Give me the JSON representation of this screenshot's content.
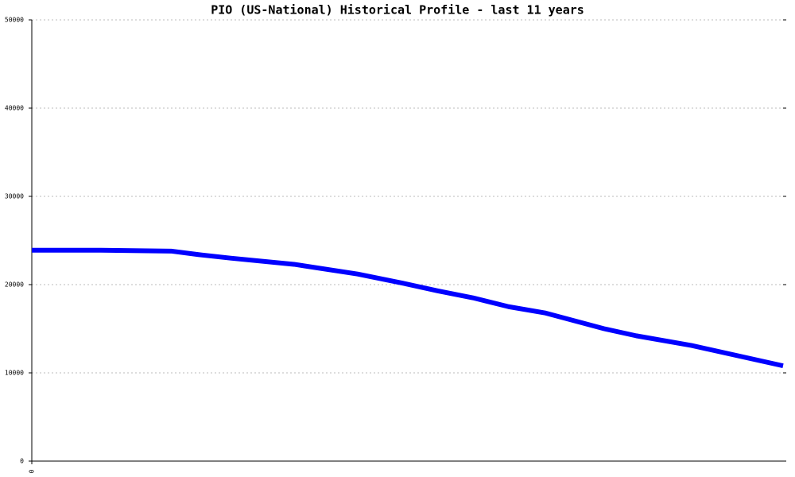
{
  "chart_data": {
    "type": "line",
    "title": "PIO (US-National) Historical Profile - last 11 years",
    "x": [
      0,
      0.99,
      2.04,
      2.44,
      2.91,
      3.84,
      4.77,
      5.47,
      5.94,
      6.46,
      6.98,
      7.51,
      8.38,
      8.85,
      9.66,
      11
    ],
    "series": [
      {
        "name": "PIO",
        "color": "#0000ff",
        "values": [
          23900,
          23900,
          23800,
          23400,
          23000,
          22300,
          21200,
          20100,
          19300,
          18500,
          17500,
          16800,
          15000,
          14200,
          13100,
          10800
        ]
      }
    ],
    "xlim": [
      0,
      11
    ],
    "xticks": [
      0
    ],
    "ylim": [
      0,
      50000
    ],
    "yticks": [
      0,
      10000,
      20000,
      30000,
      40000,
      50000
    ],
    "grid": true
  }
}
